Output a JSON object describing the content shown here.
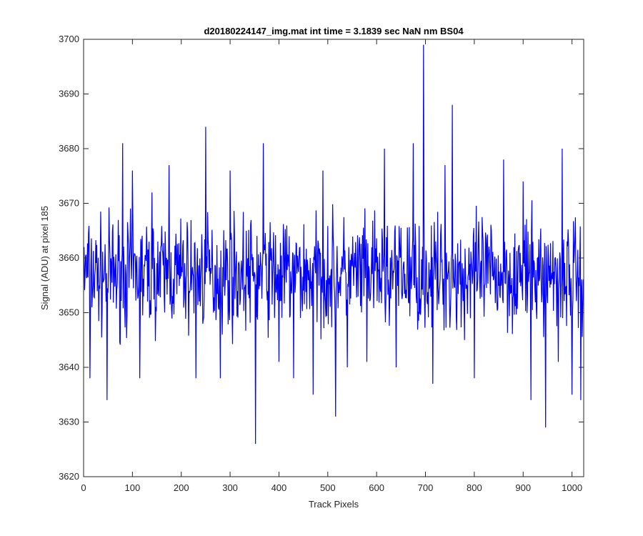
{
  "chart_data": {
    "type": "line",
    "title": "d20180224147_img.mat int time = 3.1839 sec  NaN nm BS04",
    "xlabel": "Track Pixels",
    "ylabel": "Signal (ADU) at pixel 185",
    "xlim": [
      0,
      1024
    ],
    "ylim": [
      3620,
      3700
    ],
    "xticks": [
      0,
      100,
      200,
      300,
      400,
      500,
      600,
      700,
      800,
      900,
      1000
    ],
    "yticks": [
      3620,
      3630,
      3640,
      3650,
      3660,
      3670,
      3680,
      3690,
      3700
    ],
    "grid": false,
    "legend": "none",
    "series": [
      {
        "color": "#0000ff",
        "baseline": 3657,
        "noise_amplitude": 9,
        "n_points": 1024,
        "x": [
          1,
          13,
          48,
          80,
          100,
          115,
          140,
          175,
          230,
          250,
          280,
          300,
          352,
          368,
          400,
          430,
          470,
          490,
          516,
          540,
          580,
          616,
          640,
          675,
          696,
          715,
          740,
          755,
          780,
          800,
          860,
          900,
          916,
          946,
          972,
          980,
          1000,
          1018
        ],
        "y": [
          3662,
          3638,
          3634,
          3681,
          3676,
          3638,
          3672,
          3677,
          3638,
          3684,
          3638,
          3676,
          3626,
          3681,
          3641,
          3638,
          3635,
          3676,
          3631,
          3640,
          3641,
          3680,
          3640,
          3681,
          3699,
          3637,
          3677,
          3688,
          3645,
          3638,
          3678,
          3674,
          3634,
          3629,
          3641,
          3680,
          3635,
          3634
        ]
      }
    ]
  }
}
